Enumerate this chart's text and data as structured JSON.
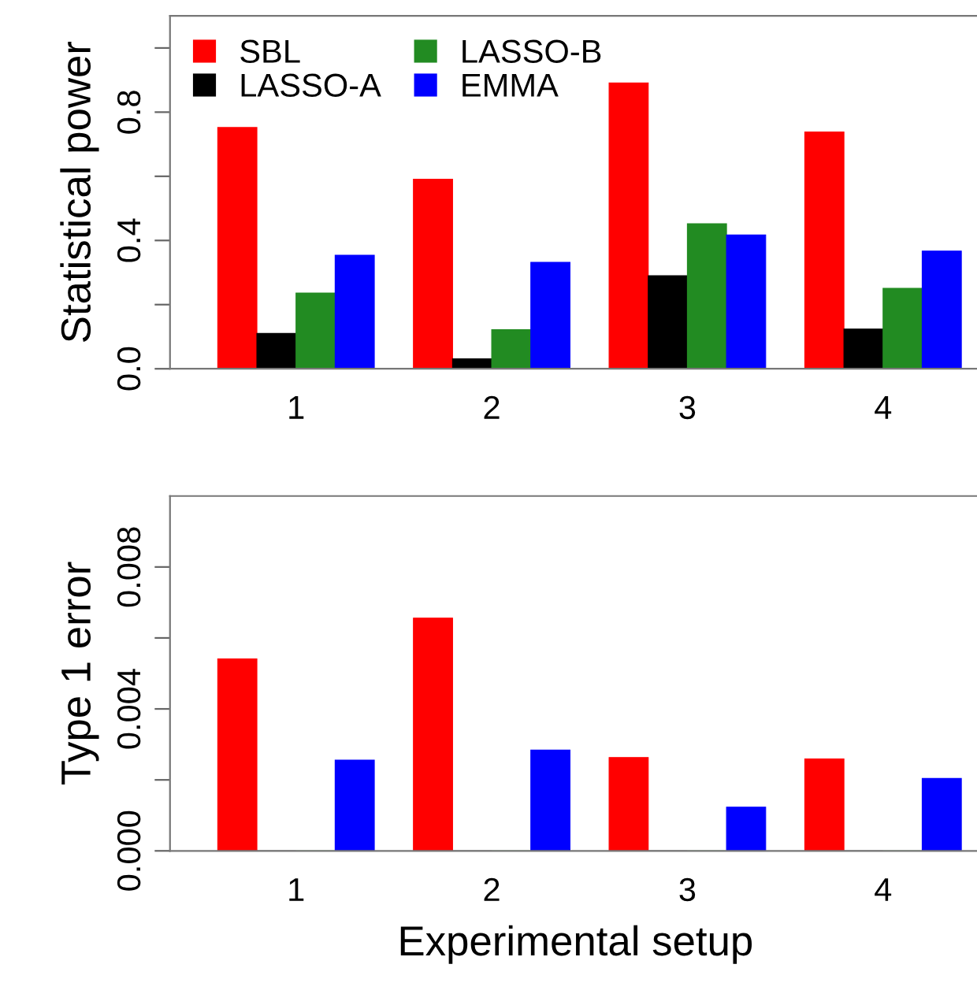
{
  "chart_data": [
    {
      "type": "bar",
      "ylabel": "Statistical power",
      "categories": [
        "1",
        "2",
        "3",
        "4"
      ],
      "ylim": [
        0,
        1.1
      ],
      "yticks": [
        {
          "value": 0.0,
          "label": "0.0"
        },
        {
          "value": 0.2,
          "label": null
        },
        0.4,
        {
          "value": 0.6,
          "label": null
        },
        0.8,
        {
          "value": 1.0,
          "label": null
        }
      ],
      "legend": "top left",
      "grid": false,
      "series": [
        {
          "name": "SBL",
          "color": "#ff0000",
          "values": [
            0.752,
            0.591,
            0.891,
            0.738
          ]
        },
        {
          "name": "LASSO-A",
          "color": "#000000",
          "values": [
            0.11,
            0.031,
            0.29,
            0.124
          ]
        },
        {
          "name": "LASSO-B",
          "color": "#228b22",
          "values": [
            0.236,
            0.122,
            0.452,
            0.251
          ]
        },
        {
          "name": "EMMA",
          "color": "#0000ff",
          "values": [
            0.354,
            0.332,
            0.417,
            0.367
          ]
        }
      ]
    },
    {
      "type": "bar",
      "ylabel": "Type 1 error",
      "xlabel": "Experimental setup",
      "categories": [
        "1",
        "2",
        "3",
        "4"
      ],
      "ylim": [
        0,
        0.01
      ],
      "yticks": [
        {
          "value": 0.0,
          "label": "0.000"
        },
        {
          "value": 0.002,
          "label": null
        },
        {
          "value": 0.004,
          "label": "0.004"
        },
        {
          "value": 0.006,
          "label": null
        },
        {
          "value": 0.008,
          "label": "0.008"
        }
      ],
      "legend": false,
      "grid": false,
      "series": [
        {
          "color": "#ff0000",
          "values": [
            0.00541,
            0.00656,
            0.00263,
            0.00259
          ]
        },
        {
          "color": "#000000",
          "values": [
            0,
            0,
            0,
            0
          ]
        },
        {
          "color": "#228b22",
          "values": [
            0,
            0,
            0,
            0
          ]
        },
        {
          "color": "#0000ff",
          "values": [
            0.00256,
            0.00284,
            0.00123,
            0.00204
          ]
        }
      ]
    }
  ]
}
